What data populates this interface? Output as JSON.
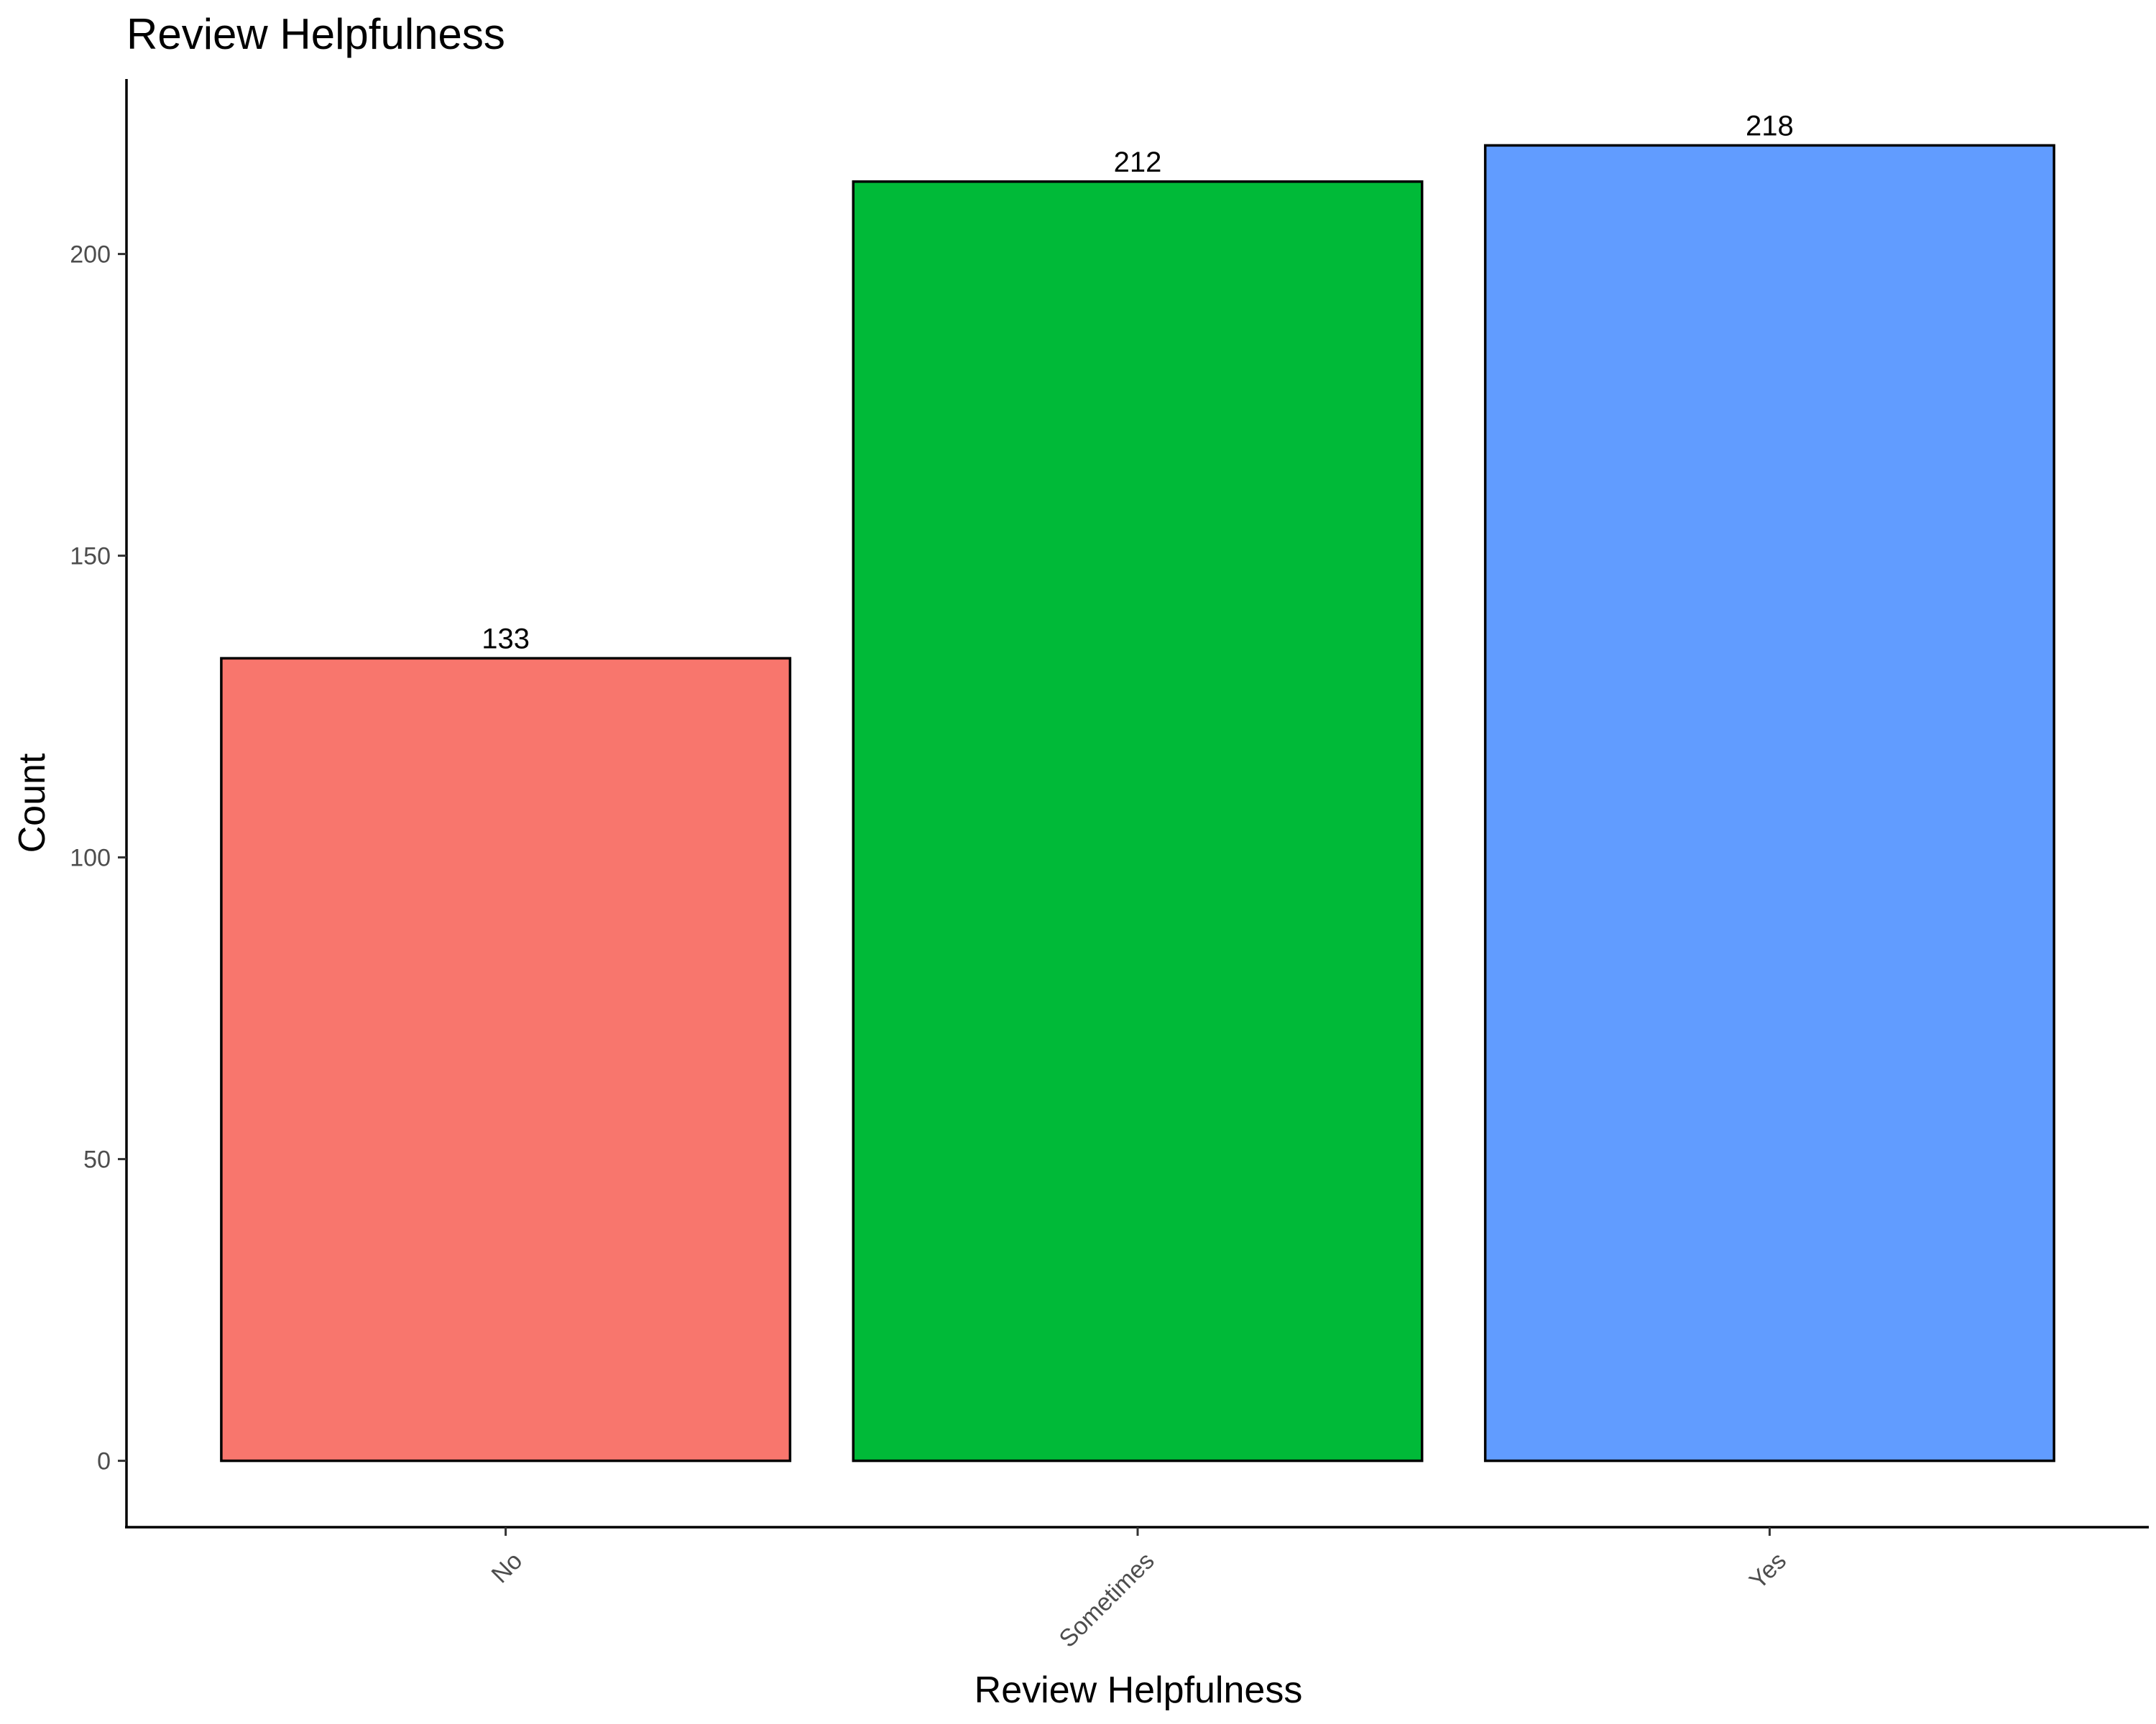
{
  "chart_data": {
    "type": "bar",
    "title": "Review Helpfulness",
    "xlabel": "Review Helpfulness",
    "ylabel": "Count",
    "categories": [
      "No",
      "Sometimes",
      "Yes"
    ],
    "values": [
      133,
      212,
      218
    ],
    "data_labels": [
      "133",
      "212",
      "218"
    ],
    "colors": [
      "#F8766D",
      "#00BA38",
      "#619CFF"
    ],
    "ylim": [
      -11,
      229
    ],
    "yticks": [
      0,
      50,
      100,
      150,
      200
    ],
    "ytick_labels": [
      "0",
      "50",
      "100",
      "150",
      "200"
    ],
    "grid": false,
    "legend": "none",
    "x_tick_rotation": "45 degrees"
  }
}
